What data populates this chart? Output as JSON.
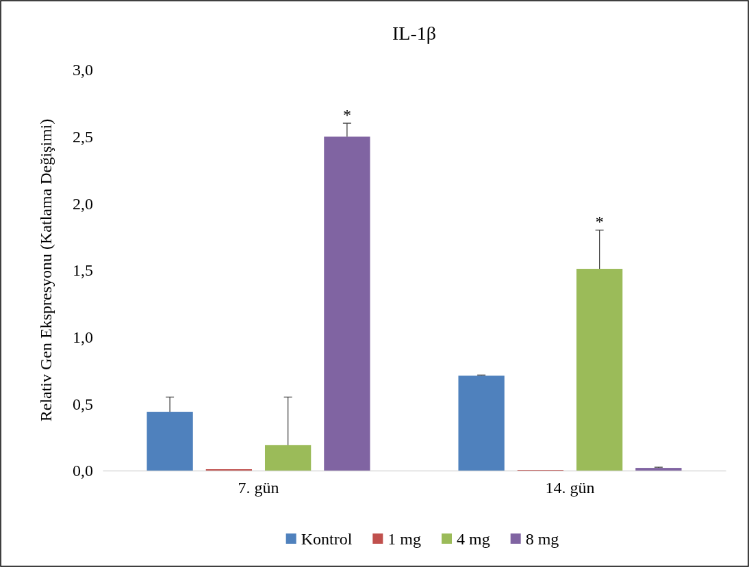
{
  "chart_data": {
    "type": "bar",
    "title": "IL-1β",
    "ylabel": "Relativ Gen Ekspresyonu (Katlama Değişimi)",
    "categories": [
      "7. gün",
      "14. gün"
    ],
    "series": [
      {
        "name": "Kontrol",
        "color": "#4f81bd",
        "values": [
          0.44,
          0.71
        ],
        "errors": [
          [
            0.44,
            0.55
          ],
          [
            0.71,
            0.715
          ]
        ]
      },
      {
        "name": "1 mg",
        "color": "#c0504d",
        "values": [
          0.01,
          0.005
        ]
      },
      {
        "name": "4 mg",
        "color": "#9bbb59",
        "values": [
          0.19,
          1.51
        ],
        "errors": [
          [
            0.19,
            0.55
          ],
          [
            1.51,
            1.8
          ]
        ]
      },
      {
        "name": "8 mg",
        "color": "#8064a2",
        "values": [
          2.5,
          0.02
        ],
        "errors": [
          [
            2.5,
            2.6
          ],
          [
            0.02,
            0.025
          ]
        ]
      }
    ],
    "ylim": [
      0,
      3
    ],
    "yticks": [
      {
        "value": 0,
        "label": "0,0"
      },
      {
        "value": 0.5,
        "label": "0,5"
      },
      {
        "value": 1,
        "label": "1,0"
      },
      {
        "value": 1.5,
        "label": "1,5"
      },
      {
        "value": 2,
        "label": "2,0"
      },
      {
        "value": 2.5,
        "label": "2,5"
      },
      {
        "value": 3,
        "label": "3,0"
      }
    ],
    "annotations": [
      "*",
      "*"
    ],
    "legend": "bottom",
    "grid": false
  }
}
